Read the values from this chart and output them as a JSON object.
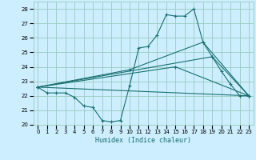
{
  "xlabel": "Humidex (Indice chaleur)",
  "bg_color": "#cceeff",
  "grid_color": "#99ccbb",
  "line_color": "#1a7070",
  "xlim": [
    -0.5,
    23.5
  ],
  "ylim": [
    20,
    28.5
  ],
  "yticks": [
    20,
    21,
    22,
    23,
    24,
    25,
    26,
    27,
    28
  ],
  "xticks": [
    0,
    1,
    2,
    3,
    4,
    5,
    6,
    7,
    8,
    9,
    10,
    11,
    12,
    13,
    14,
    15,
    16,
    17,
    18,
    19,
    20,
    21,
    22,
    23
  ],
  "line1_x": [
    0,
    1,
    2,
    3,
    4,
    5,
    6,
    7,
    8,
    9,
    10,
    11,
    12,
    13,
    14,
    15,
    16,
    17,
    18,
    19,
    20,
    21,
    22,
    23
  ],
  "line1_y": [
    22.6,
    22.2,
    22.2,
    22.2,
    21.9,
    21.3,
    21.2,
    20.3,
    20.2,
    20.3,
    22.7,
    25.3,
    25.4,
    26.2,
    27.6,
    27.5,
    27.5,
    28.0,
    25.7,
    24.7,
    23.7,
    22.8,
    22.0,
    22.0
  ],
  "line2_x": [
    0,
    23
  ],
  "line2_y": [
    22.6,
    22.0
  ],
  "line3_x": [
    0,
    15,
    23
  ],
  "line3_y": [
    22.6,
    24.0,
    22.0
  ],
  "line4_x": [
    0,
    19,
    23
  ],
  "line4_y": [
    22.6,
    24.7,
    22.0
  ],
  "line5_x": [
    0,
    10,
    18,
    23
  ],
  "line5_y": [
    22.6,
    23.8,
    25.7,
    22.0
  ]
}
